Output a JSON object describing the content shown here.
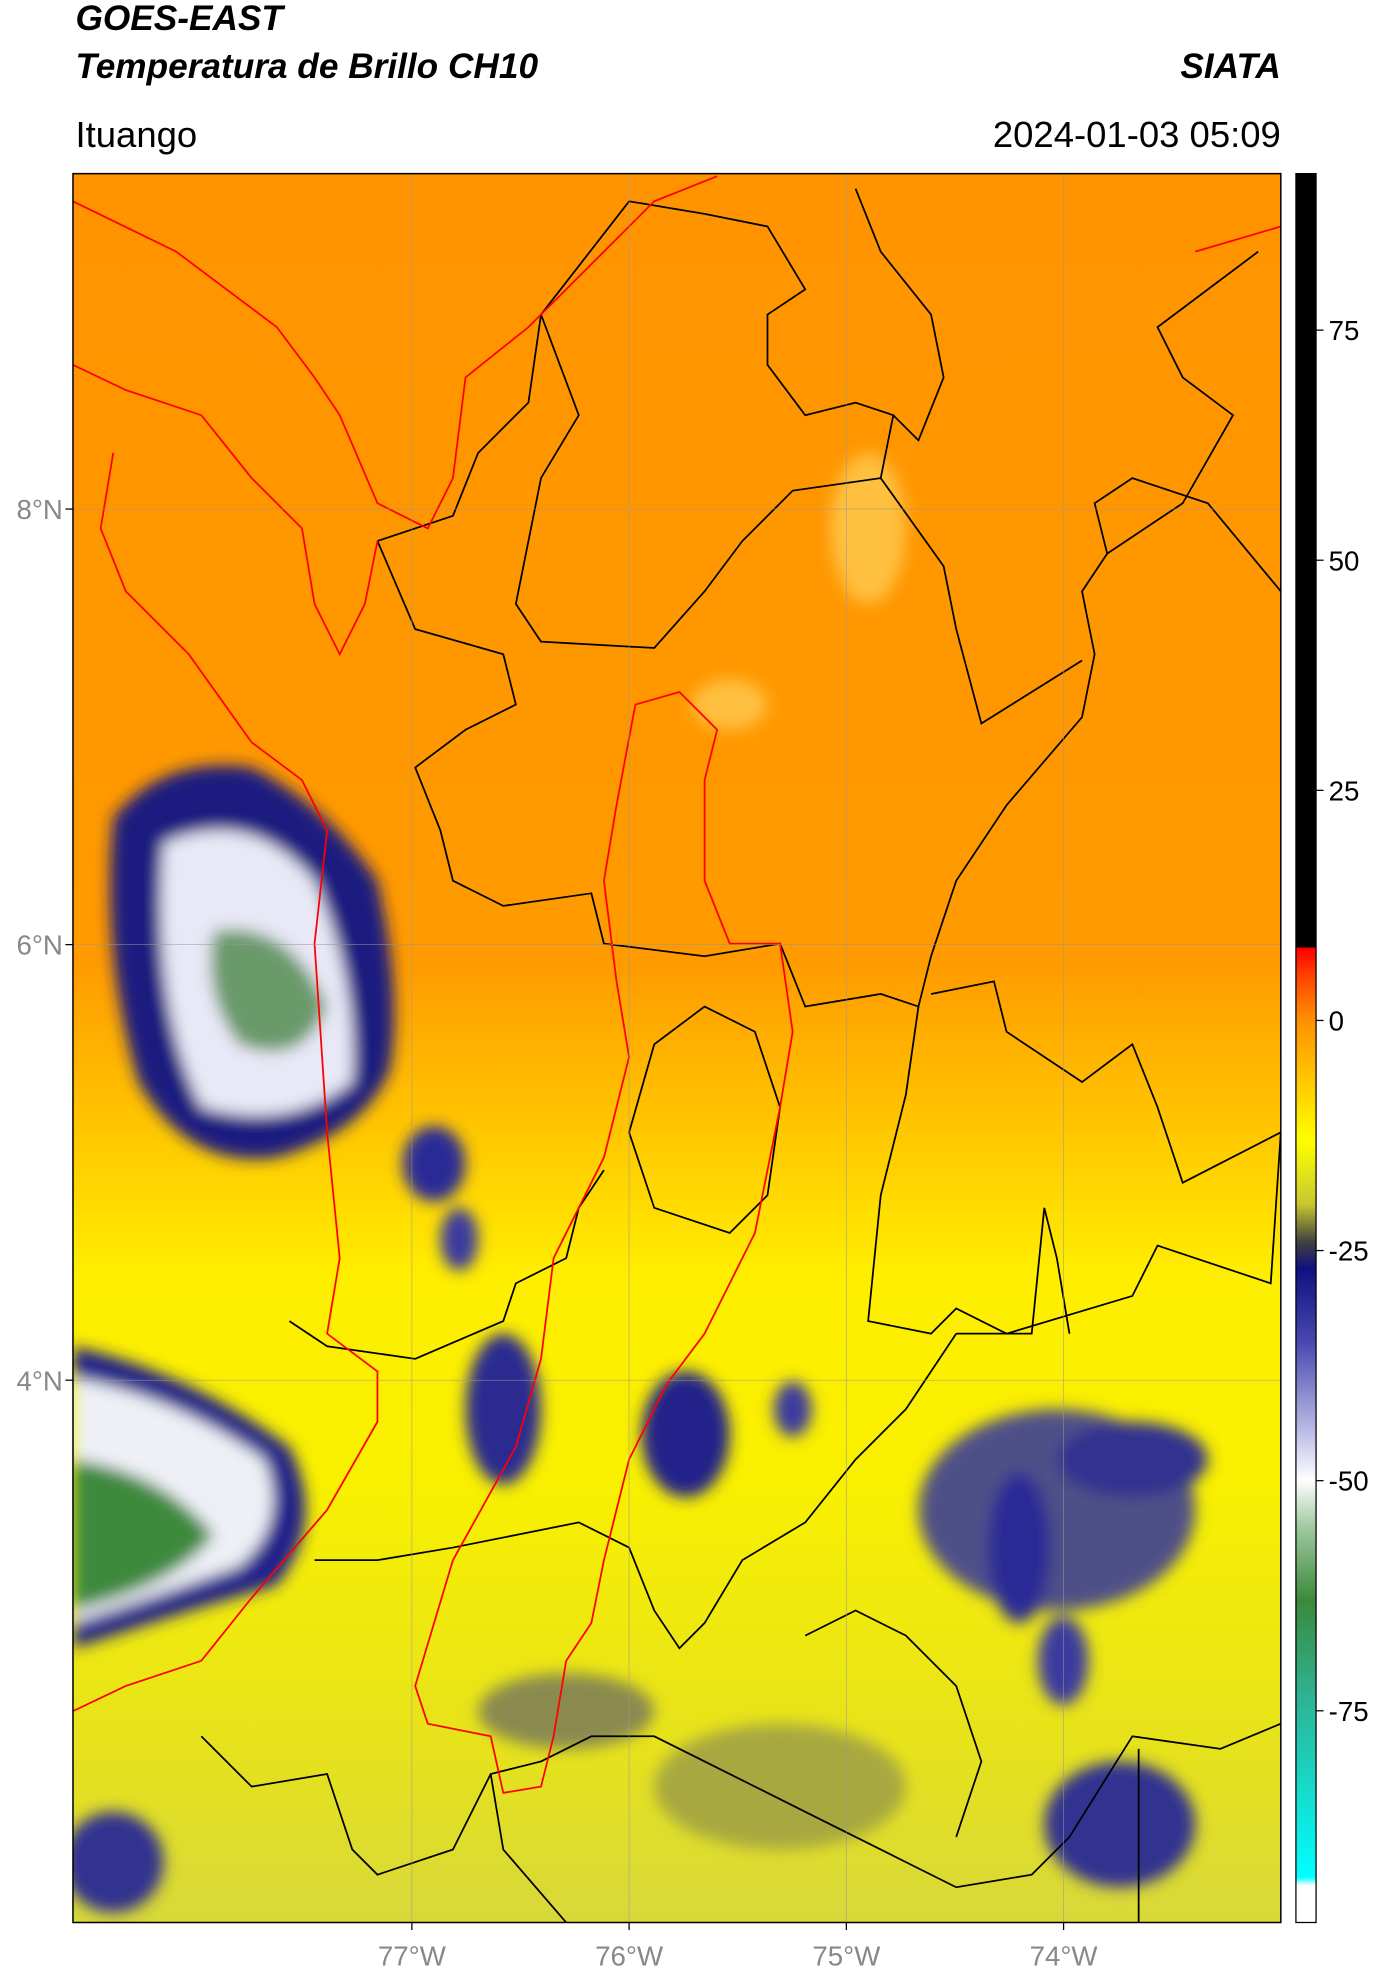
{
  "chart_data": {
    "type": "map",
    "title": "GOES-EAST",
    "subtitle": "Temperatura de Brillo CH10",
    "source": "SIATA",
    "location": "Ituango",
    "datetime": "2024-01-03 05:09",
    "xlim": [
      -78.56,
      -73.0
    ],
    "ylim": [
      1.51,
      9.54
    ],
    "xticks": [
      {
        "value": -77,
        "label": "77°W"
      },
      {
        "value": -76,
        "label": "76°W"
      },
      {
        "value": -75,
        "label": "75°W"
      },
      {
        "value": -74,
        "label": "74°W"
      }
    ],
    "yticks": [
      {
        "value": 4,
        "label": "4°N"
      },
      {
        "value": 6,
        "label": "6°N"
      },
      {
        "value": 8,
        "label": "8°N"
      }
    ],
    "grid": true,
    "colorbar_lim": [
      -98,
      92
    ],
    "colorbar_ticks": [
      -75,
      -50,
      -25,
      0,
      25,
      50,
      75
    ]
  }
}
